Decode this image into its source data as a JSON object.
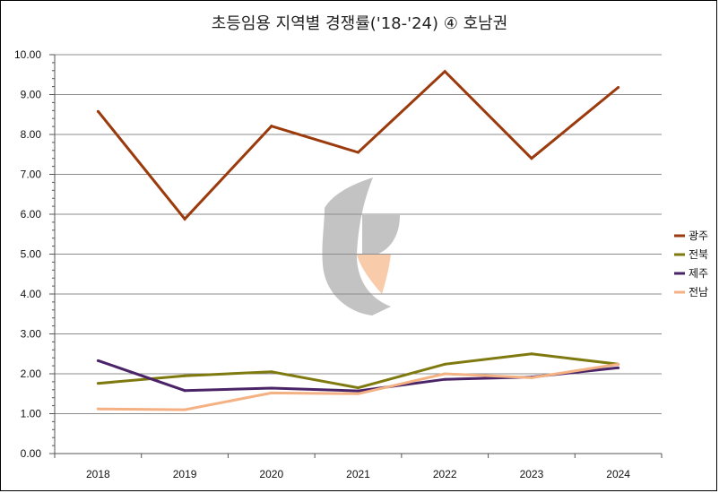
{
  "chart_data": {
    "type": "line",
    "title": "초등임용 지역별 경쟁률('18-'24) ④ 호남권",
    "xlabel": "",
    "ylabel": "",
    "categories": [
      "2018",
      "2019",
      "2020",
      "2021",
      "2022",
      "2023",
      "2024"
    ],
    "ylim": [
      0,
      10
    ],
    "yticks": [
      "0.00",
      "1.00",
      "2.00",
      "3.00",
      "4.00",
      "5.00",
      "6.00",
      "7.00",
      "8.00",
      "9.00",
      "10.00"
    ],
    "grid": true,
    "legend_position": "right",
    "series": [
      {
        "name": "광주",
        "color": "#9B3A0C",
        "values": [
          8.58,
          5.88,
          8.21,
          7.55,
          9.58,
          7.4,
          9.18
        ]
      },
      {
        "name": "전북",
        "color": "#7F7A10",
        "values": [
          1.76,
          1.95,
          2.05,
          1.65,
          2.24,
          2.5,
          2.24
        ]
      },
      {
        "name": "제주",
        "color": "#4B2468",
        "values": [
          2.33,
          1.58,
          1.64,
          1.57,
          1.86,
          1.92,
          2.15
        ]
      },
      {
        "name": "전남",
        "color": "#F4B183",
        "values": [
          1.12,
          1.1,
          1.52,
          1.5,
          2.0,
          1.9,
          2.24
        ]
      }
    ]
  }
}
